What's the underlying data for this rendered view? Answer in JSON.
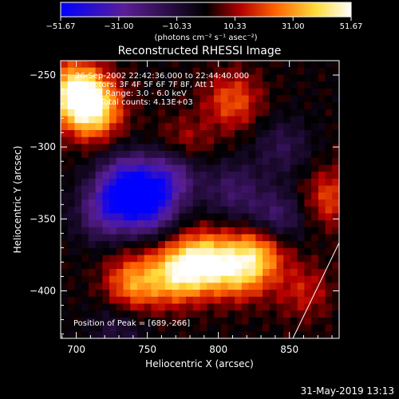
{
  "chart_data": {
    "type": "heatmap",
    "title": "Reconstructed RHESSI Image",
    "xlabel": "Heliocentric X (arcsec)",
    "ylabel": "Heliocentric Y (arcsec)",
    "xlim": [
      689,
      885
    ],
    "ylim": [
      -433,
      -240
    ],
    "x_ticks": [
      "700",
      "750",
      "800",
      "850"
    ],
    "x_tick_values": [
      700,
      750,
      800,
      850
    ],
    "y_ticks": [
      "−250",
      "−300",
      "−350",
      "−400"
    ],
    "y_tick_values": [
      -250,
      -300,
      -350,
      -400
    ],
    "colorbar": {
      "min": -51.67,
      "max": 51.67,
      "ticks": [
        "−51.67",
        "−31.00",
        "−10.33",
        "10.33",
        "31.00",
        "51.67"
      ],
      "tick_values": [
        -51.67,
        -31.0,
        -10.33,
        10.33,
        31.0,
        51.67
      ],
      "unit_label": "(photons cm⁻² s⁻¹ asec⁻²)",
      "colormap": [
        "#0000ff",
        "#5a1e96",
        "#000000",
        "#b40000",
        "#ff6400",
        "#ffdc3c",
        "#ffffff"
      ]
    },
    "annotations": [
      "26-Sep-2002 22:42:36.000 to 22:44:40.000",
      "Detectors: 3F 4F 5F 6F 7F 8F, Att 1",
      "Energy Range: 3.0 - 6.0 keV",
      "Clean      Total counts: 4.13E+03"
    ],
    "peak_label": "Position of Peak = [689,-266]",
    "features": [
      {
        "x": 700,
        "y": -262,
        "intensity": 48
      },
      {
        "x": 712,
        "y": -275,
        "intensity": 38
      },
      {
        "x": 790,
        "y": -380,
        "intensity": 42
      },
      {
        "x": 770,
        "y": -388,
        "intensity": 36
      },
      {
        "x": 815,
        "y": -385,
        "intensity": 34
      },
      {
        "x": 740,
        "y": -395,
        "intensity": 30
      },
      {
        "x": 830,
        "y": -372,
        "intensity": 26
      },
      {
        "x": 810,
        "y": -268,
        "intensity": 22
      },
      {
        "x": 880,
        "y": -335,
        "intensity": 20
      },
      {
        "x": 775,
        "y": -300,
        "intensity": 16
      },
      {
        "x": 860,
        "y": -400,
        "intensity": 14
      },
      {
        "x": 750,
        "y": -340,
        "intensity": -44
      },
      {
        "x": 735,
        "y": -325,
        "intensity": -38
      },
      {
        "x": 768,
        "y": -318,
        "intensity": -30
      },
      {
        "x": 720,
        "y": -345,
        "intensity": -28
      },
      {
        "x": 840,
        "y": -350,
        "intensity": -22
      },
      {
        "x": 810,
        "y": -330,
        "intensity": -18
      },
      {
        "x": 845,
        "y": -300,
        "intensity": -14
      },
      {
        "x": 730,
        "y": -425,
        "intensity": -12
      }
    ]
  },
  "footer": {
    "timestamp": "31-May-2019 13:13"
  }
}
